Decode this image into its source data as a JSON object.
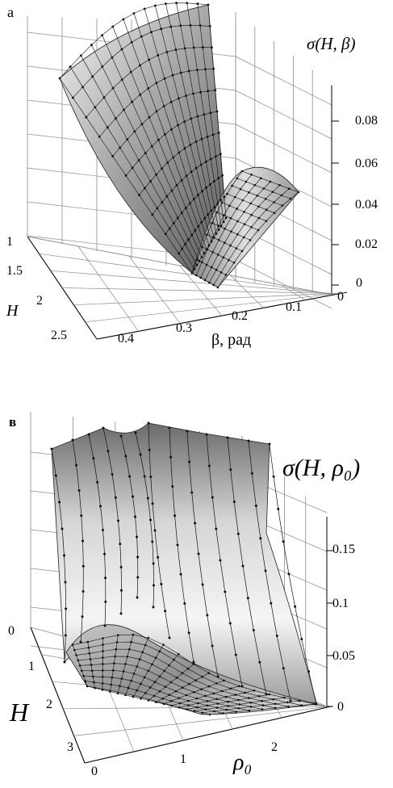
{
  "figure": {
    "panel_a_letter": "а",
    "panel_b_letter": "в"
  },
  "chart_data": [
    {
      "type": "surface",
      "panel": "а",
      "zlabel": "σ(H, β)",
      "xlabel": "β, рад",
      "ylabel": "H",
      "x_ticks": [
        "0.4",
        "0.3",
        "0.2",
        "0.1",
        "0"
      ],
      "y_ticks": [
        "1",
        "1.5",
        "2",
        "2.5"
      ],
      "z_ticks": [
        "0",
        "0.02",
        "0.04",
        "0.06",
        "0.08"
      ],
      "xlim": [
        0,
        0.45
      ],
      "ylim": [
        1,
        2.6
      ],
      "zlim": [
        0,
        0.1
      ],
      "surface_series": [
        {
          "H": 1.0,
          "points": [
            [
              0.45,
              0.1
            ],
            [
              0.4,
              0.082
            ],
            [
              0.35,
              0.064
            ],
            [
              0.3,
              0.046
            ],
            [
              0.25,
              0.03
            ],
            [
              0.2,
              0.018
            ],
            [
              0.15,
              0.04
            ],
            [
              0.1,
              0.06
            ]
          ]
        },
        {
          "H": 1.3,
          "points": [
            [
              0.45,
              0.098
            ],
            [
              0.4,
              0.079
            ],
            [
              0.35,
              0.06
            ],
            [
              0.3,
              0.042
            ],
            [
              0.25,
              0.026
            ],
            [
              0.2,
              0.014
            ],
            [
              0.15,
              0.034
            ],
            [
              0.1,
              0.054
            ]
          ]
        },
        {
          "H": 1.6,
          "points": [
            [
              0.45,
              0.096
            ],
            [
              0.4,
              0.076
            ],
            [
              0.35,
              0.057
            ],
            [
              0.3,
              0.038
            ],
            [
              0.25,
              0.022
            ],
            [
              0.2,
              0.01
            ],
            [
              0.15,
              0.028
            ],
            [
              0.1,
              0.048
            ]
          ]
        },
        {
          "H": 1.9,
          "points": [
            [
              0.45,
              0.094
            ],
            [
              0.4,
              0.073
            ],
            [
              0.35,
              0.053
            ],
            [
              0.3,
              0.034
            ],
            [
              0.25,
              0.018
            ],
            [
              0.2,
              0.007
            ],
            [
              0.15,
              0.022
            ],
            [
              0.1,
              0.042
            ]
          ]
        },
        {
          "H": 2.2,
          "points": [
            [
              0.45,
              0.092
            ],
            [
              0.4,
              0.07
            ],
            [
              0.35,
              0.05
            ],
            [
              0.3,
              0.03
            ],
            [
              0.25,
              0.014
            ],
            [
              0.2,
              0.004
            ],
            [
              0.15,
              0.016
            ],
            [
              0.1,
              0.036
            ]
          ]
        }
      ]
    },
    {
      "type": "surface",
      "panel": "в",
      "zlabel": "σ(H, ρ₀)",
      "xlabel": "ρ₀",
      "ylabel": "H",
      "x_ticks": [
        "0",
        "1",
        "2"
      ],
      "y_ticks": [
        "0",
        "1",
        "2",
        "3"
      ],
      "z_ticks": [
        "0",
        "0.05",
        "0.1",
        "0.15"
      ],
      "xlim": [
        0,
        2.8
      ],
      "ylim": [
        0,
        3.2
      ],
      "zlim": [
        0,
        0.2
      ],
      "surface_series": [
        {
          "H": 0.3,
          "points": [
            [
              0.0,
              0.2
            ],
            [
              0.4,
              0.19
            ],
            [
              0.8,
              0.18
            ],
            [
              1.2,
              0.2
            ],
            [
              1.6,
              0.19
            ],
            [
              2.0,
              0.18
            ],
            [
              2.4,
              0.15
            ],
            [
              2.8,
              0.12
            ]
          ]
        },
        {
          "H": 0.9,
          "points": [
            [
              0.0,
              0.08
            ],
            [
              0.4,
              0.12
            ],
            [
              0.8,
              0.16
            ],
            [
              1.2,
              0.14
            ],
            [
              1.6,
              0.1
            ],
            [
              2.0,
              0.07
            ],
            [
              2.4,
              0.05
            ],
            [
              2.8,
              0.03
            ]
          ]
        },
        {
          "H": 1.5,
          "points": [
            [
              0.0,
              0.03
            ],
            [
              0.4,
              0.06
            ],
            [
              0.8,
              0.09
            ],
            [
              1.2,
              0.08
            ],
            [
              1.6,
              0.06
            ],
            [
              2.0,
              0.04
            ],
            [
              2.4,
              0.025
            ],
            [
              2.8,
              0.01
            ]
          ]
        },
        {
          "H": 2.1,
          "points": [
            [
              0.0,
              0.02
            ],
            [
              0.4,
              0.04
            ],
            [
              0.8,
              0.05
            ],
            [
              1.2,
              0.05
            ],
            [
              1.6,
              0.04
            ],
            [
              2.0,
              0.03
            ],
            [
              2.4,
              0.015
            ],
            [
              2.8,
              0.005
            ]
          ]
        },
        {
          "H": 2.7,
          "points": [
            [
              0.0,
              0.015
            ],
            [
              0.4,
              0.025
            ],
            [
              0.8,
              0.03
            ],
            [
              1.2,
              0.03
            ],
            [
              1.6,
              0.025
            ],
            [
              2.0,
              0.02
            ],
            [
              2.4,
              0.01
            ],
            [
              2.8,
              0.0
            ]
          ]
        }
      ]
    }
  ],
  "colors": {
    "surface_light": "#f2f2f2",
    "surface_mid": "#bdbdbd",
    "surface_dark": "#6e6e6e",
    "grid": "#8c8c8c",
    "mesh": "#111111"
  }
}
